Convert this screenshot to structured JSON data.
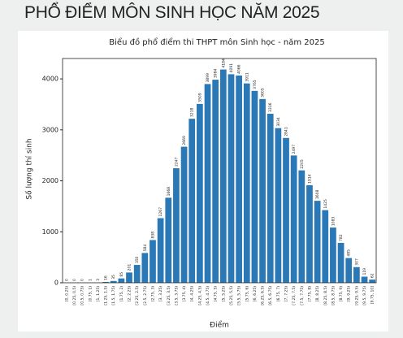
{
  "heading": "PHỔ ĐIỂM MÔN SINH HỌC NĂM 2025",
  "chart_data": {
    "type": "bar",
    "title": "Biểu đồ phổ điểm thi THPT môn Sinh học - năm 2025",
    "x_label": "Điểm",
    "y_label": "Số lượng thí sinh",
    "categories": [
      "[0, 0.25)",
      "[0.25, 0.5)",
      "[0.5, 0.75)",
      "[0.75, 1)",
      "[1, 1.25)",
      "[1.25, 1.5)",
      "[1.5, 1.75)",
      "[1.75, 2)",
      "[2, 2.25)",
      "[2.25, 2.5)",
      "[2.5, 2.75)",
      "[2.75, 3)",
      "[3, 3.25)",
      "[3.25, 3.5)",
      "[3.5, 3.75)",
      "[3.75, 4)",
      "[4, 4.25)",
      "[4.25, 4.5)",
      "[4.5, 4.75)",
      "[4.75, 5)",
      "[5, 5.25)",
      "[5.25, 5.5)",
      "[5.5, 5.75)",
      "[5.75, 6)",
      "[6, 6.25)",
      "[6.25, 6.5)",
      "[6.5, 6.75)",
      "[6.75, 7)",
      "[7, 7.25)",
      "[7.25, 7.5)",
      "[7.5, 7.75)",
      "[7.75, 8)",
      "[8, 8.25)",
      "[8.25, 8.5)",
      "[8.5, 8.75)",
      "[8.75, 9)",
      "[9, 9.25)",
      "[9.25, 9.5)",
      "[9.5, 9.75)",
      "[9.75, 10]"
    ],
    "values": [
      0,
      0,
      0,
      1,
      3,
      16,
      35,
      85,
      201,
      350,
      584,
      838,
      1267,
      1668,
      2247,
      2669,
      3218,
      3509,
      3899,
      3984,
      4184,
      4091,
      4066,
      3911,
      3765,
      3605,
      3316,
      3034,
      2841,
      2497,
      2205,
      1914,
      1608,
      1425,
      1083,
      782,
      485,
      307,
      119,
      62
    ],
    "color": "#2a78b6",
    "ylim": [
      0,
      4400
    ],
    "yticks": [
      0,
      1000,
      2000,
      3000,
      4000
    ]
  }
}
